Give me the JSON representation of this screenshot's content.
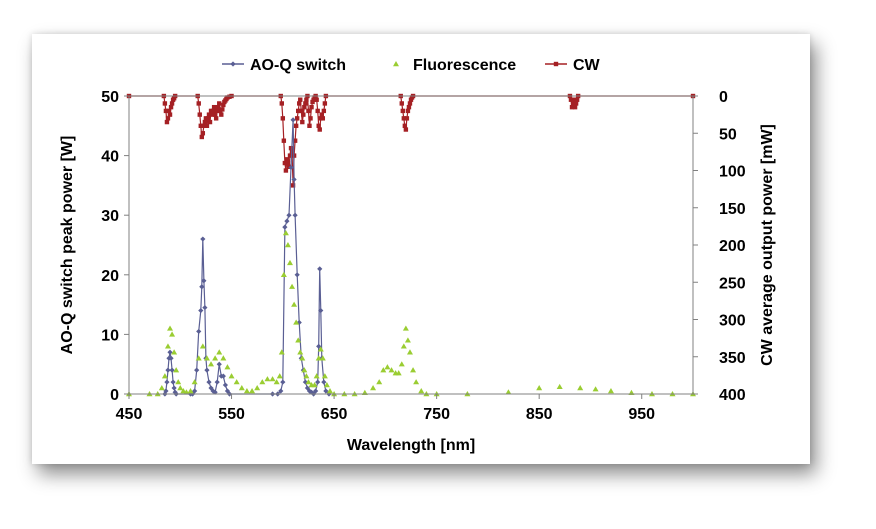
{
  "chart_data": {
    "type": "line",
    "title": "",
    "xlabel": "Wavelength [nm]",
    "ylabel": "AO-Q switch peak power [W]",
    "y2label": "CW average output power  [mW]",
    "xlim": [
      450,
      1000
    ],
    "ylim": [
      0,
      50
    ],
    "y2lim": [
      400,
      0
    ],
    "y2_inverted": true,
    "x_ticks": [
      "450",
      "550",
      "650",
      "750",
      "850",
      "950"
    ],
    "y_ticks": [
      "0",
      "10",
      "20",
      "30",
      "40",
      "50"
    ],
    "y2_ticks": [
      "0",
      "50",
      "100",
      "150",
      "200",
      "250",
      "300",
      "350",
      "400"
    ],
    "grid": false,
    "legend_position": "top",
    "series": [
      {
        "name": "AO-Q switch",
        "axis": "left",
        "marker": "diamond",
        "color": "#5a5f94",
        "x": [
          485,
          486,
          487,
          488,
          489,
          490,
          491,
          492,
          493,
          494,
          495,
          496,
          510,
          512,
          514,
          516,
          518,
          520,
          521,
          522,
          523,
          524,
          525,
          526,
          528,
          530,
          532,
          534,
          536,
          538,
          540,
          542,
          544,
          546,
          548,
          590,
          595,
          598,
          600,
          602,
          604,
          606,
          608,
          610,
          611,
          612,
          614,
          616,
          618,
          620,
          622,
          624,
          626,
          628,
          630,
          632,
          634,
          635,
          636,
          637,
          638,
          640,
          642,
          645
        ],
        "values": [
          0,
          0.5,
          2,
          4,
          6,
          7,
          6,
          4,
          2,
          1,
          0.3,
          0,
          0,
          0,
          0.5,
          4,
          10.5,
          14,
          18,
          26,
          19,
          14.5,
          6,
          4,
          2,
          1,
          0.5,
          0.3,
          2,
          5,
          3,
          3,
          1.5,
          0.5,
          0,
          0,
          0,
          0.5,
          2,
          28,
          29,
          30,
          38,
          46,
          36,
          30,
          20,
          12,
          6,
          4,
          2,
          1,
          0.5,
          0.3,
          0,
          0.5,
          2,
          8,
          21,
          14,
          6,
          2,
          0.5,
          0
        ]
      },
      {
        "name": "Fluorescence",
        "axis": "left",
        "marker": "triangle",
        "color": "#9acd32",
        "x": [
          450,
          470,
          478,
          482,
          485,
          488,
          490,
          492,
          494,
          496,
          498,
          500,
          503,
          506,
          510,
          514,
          518,
          522,
          526,
          530,
          534,
          538,
          542,
          546,
          550,
          555,
          560,
          565,
          570,
          575,
          580,
          585,
          590,
          594,
          597,
          599,
          601,
          603,
          605,
          607,
          609,
          611,
          613,
          615,
          617,
          619,
          621,
          623,
          625,
          628,
          631,
          633,
          635,
          637,
          639,
          641,
          643,
          646,
          650,
          660,
          670,
          680,
          688,
          694,
          698,
          702,
          706,
          710,
          713,
          716,
          718,
          720,
          722,
          724,
          727,
          730,
          735,
          740,
          750,
          780,
          820,
          850,
          870,
          890,
          905,
          920,
          940,
          960,
          980,
          1000
        ],
        "values": [
          0,
          0,
          0,
          1,
          3,
          8,
          11,
          10,
          7,
          4,
          2,
          1,
          0.5,
          0.3,
          0.5,
          2,
          6,
          8,
          6,
          5,
          6,
          7,
          6,
          4.5,
          3,
          2,
          1,
          0.5,
          0.5,
          1,
          2,
          2.5,
          2.5,
          2,
          3,
          7,
          20,
          27,
          25,
          22,
          18,
          15,
          12,
          9,
          7,
          6,
          4,
          3,
          2,
          1.5,
          1.5,
          3,
          6,
          7.5,
          6,
          3,
          1.5,
          0.5,
          0,
          0,
          0,
          0.2,
          1,
          2,
          4,
          4.5,
          4,
          3.5,
          3.5,
          5,
          8,
          11,
          9,
          7,
          4,
          2,
          0.5,
          0,
          0,
          0,
          0.3,
          1,
          1.2,
          1,
          0.8,
          0.5,
          0.2,
          0,
          0,
          0
        ]
      },
      {
        "name": "CW",
        "axis": "right",
        "marker": "square",
        "color": "#a52024",
        "x": [
          450,
          484,
          485,
          486,
          487,
          488,
          489,
          490,
          491,
          492,
          493,
          494,
          495,
          517,
          518,
          519,
          520,
          521,
          522,
          523,
          524,
          525,
          526,
          527,
          528,
          529,
          530,
          531,
          532,
          533,
          534,
          535,
          536,
          537,
          538,
          539,
          540,
          541,
          542,
          543,
          544,
          545,
          546,
          548,
          550,
          551,
          598,
          599,
          600,
          601,
          602,
          603,
          604,
          605,
          606,
          607,
          608,
          609,
          610,
          611,
          612,
          613,
          614,
          615,
          616,
          617,
          618,
          619,
          620,
          621,
          622,
          623,
          624,
          625,
          626,
          627,
          628,
          629,
          630,
          631,
          632,
          633,
          634,
          635,
          636,
          637,
          638,
          639,
          640,
          641,
          642,
          715,
          716,
          717,
          718,
          719,
          720,
          721,
          722,
          723,
          724,
          725,
          726,
          727,
          728,
          880,
          881,
          882,
          883,
          884,
          885,
          886,
          887,
          888,
          889,
          890,
          1000
        ],
        "values": [
          0,
          0,
          10,
          20,
          35,
          30,
          20,
          25,
          15,
          10,
          5,
          3,
          0,
          0,
          10,
          25,
          40,
          55,
          50,
          40,
          35,
          30,
          40,
          30,
          25,
          35,
          20,
          25,
          20,
          15,
          25,
          30,
          20,
          15,
          10,
          20,
          25,
          18,
          12,
          8,
          6,
          4,
          2,
          1,
          0,
          0,
          0,
          10,
          30,
          60,
          90,
          100,
          85,
          90,
          95,
          80,
          70,
          75,
          120,
          80,
          60,
          40,
          30,
          20,
          10,
          5,
          20,
          35,
          25,
          15,
          10,
          5,
          0,
          20,
          40,
          30,
          15,
          8,
          5,
          2,
          0,
          5,
          20,
          40,
          45,
          30,
          25,
          30,
          20,
          10,
          0,
          0,
          10,
          20,
          30,
          40,
          45,
          30,
          20,
          15,
          10,
          5,
          2,
          0,
          0,
          0,
          5,
          15,
          10,
          5,
          15,
          10,
          5,
          0,
          0,
          0,
          0
        ]
      }
    ]
  }
}
